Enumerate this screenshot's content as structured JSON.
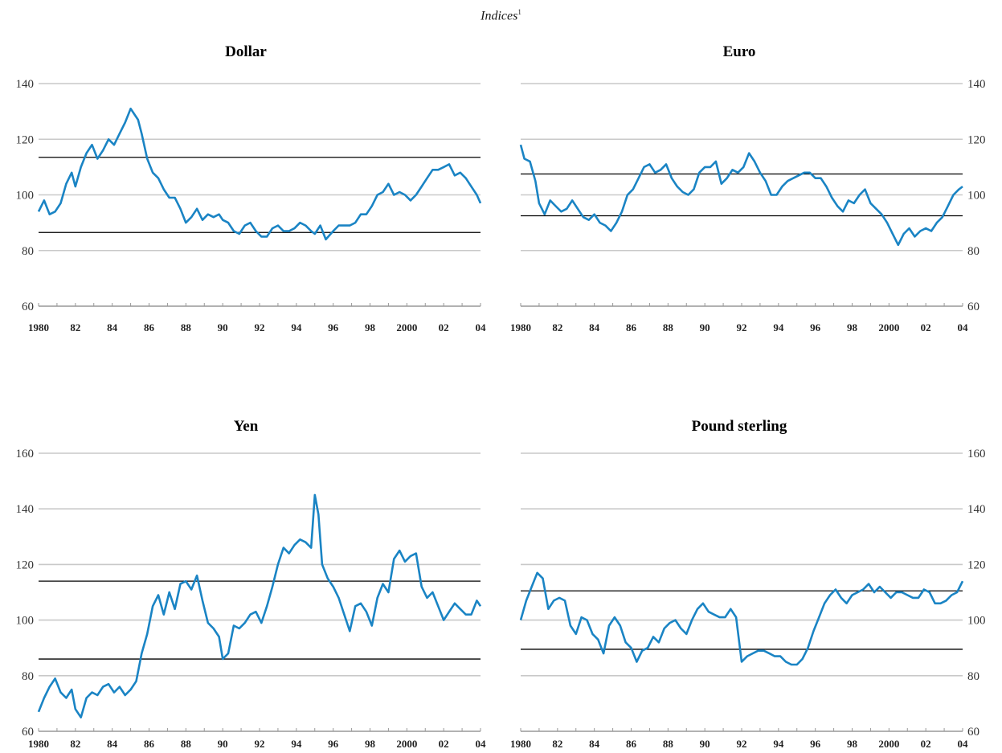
{
  "figure": {
    "title": "Indices",
    "title_superscript": "1"
  },
  "colors": {
    "series": "#1a84c4",
    "grid": "#c9c9c9",
    "band": "#000000"
  },
  "chart_data": [
    {
      "type": "line",
      "title": "Dollar",
      "y_axis_side": "left",
      "ylim": [
        60,
        140
      ],
      "yticks": [
        60,
        80,
        100,
        120,
        140
      ],
      "xlim": [
        1980,
        2004
      ],
      "xtick_values": [
        1980,
        1982,
        1984,
        1986,
        1988,
        1990,
        1992,
        1994,
        1996,
        1998,
        2000,
        2002,
        2004
      ],
      "xtick_labels": [
        "1980",
        "82",
        "84",
        "86",
        "88",
        "90",
        "92",
        "94",
        "96",
        "98",
        "2000",
        "02",
        "04"
      ],
      "grid": true,
      "bands": [
        113.5,
        86.5
      ],
      "series": [
        {
          "x": [
            1980.0,
            1980.3,
            1980.6,
            1980.9,
            1981.2,
            1981.5,
            1981.8,
            1982.0,
            1982.3,
            1982.6,
            1982.9,
            1983.2,
            1983.5,
            1983.8,
            1984.1,
            1984.4,
            1984.7,
            1985.0,
            1985.2,
            1985.4,
            1985.6,
            1985.9,
            1986.2,
            1986.5,
            1986.8,
            1987.1,
            1987.4,
            1987.7,
            1988.0,
            1988.3,
            1988.6,
            1988.9,
            1989.2,
            1989.5,
            1989.8,
            1990.0,
            1990.3,
            1990.6,
            1990.9,
            1991.2,
            1991.5,
            1991.8,
            1992.1,
            1992.4,
            1992.7,
            1993.0,
            1993.3,
            1993.6,
            1993.9,
            1994.2,
            1994.5,
            1994.8,
            1995.0,
            1995.3,
            1995.6,
            1996.0,
            1996.3,
            1996.6,
            1996.9,
            1997.2,
            1997.5,
            1997.8,
            1998.1,
            1998.4,
            1998.7,
            1999.0,
            1999.3,
            1999.6,
            1999.9,
            2000.2,
            2000.5,
            2000.8,
            2001.1,
            2001.4,
            2001.7,
            2002.0,
            2002.3,
            2002.6,
            2002.9,
            2003.2,
            2003.5,
            2003.8,
            2004.0
          ],
          "y": [
            94,
            98,
            93,
            94,
            97,
            104,
            108,
            103,
            110,
            115,
            118,
            113,
            116,
            120,
            118,
            122,
            126,
            131,
            129,
            127,
            122,
            113,
            108,
            106,
            102,
            99,
            99,
            95,
            90,
            92,
            95,
            91,
            93,
            92,
            93,
            91,
            90,
            87,
            86,
            89,
            90,
            87,
            85,
            85,
            88,
            89,
            87,
            87,
            88,
            90,
            89,
            87,
            86,
            89,
            84,
            87,
            89,
            89,
            89,
            90,
            93,
            93,
            96,
            100,
            101,
            104,
            100,
            101,
            100,
            98,
            100,
            103,
            106,
            109,
            109,
            110,
            111,
            107,
            108,
            106,
            103,
            100,
            97
          ]
        }
      ]
    },
    {
      "type": "line",
      "title": "Euro",
      "y_axis_side": "right",
      "ylim": [
        60,
        140
      ],
      "yticks": [
        60,
        80,
        100,
        120,
        140
      ],
      "xlim": [
        1980,
        2004
      ],
      "xtick_values": [
        1980,
        1982,
        1984,
        1986,
        1988,
        1990,
        1992,
        1994,
        1996,
        1998,
        2000,
        2002,
        2004
      ],
      "xtick_labels": [
        "1980",
        "82",
        "84",
        "86",
        "88",
        "90",
        "92",
        "94",
        "96",
        "98",
        "2000",
        "02",
        "04"
      ],
      "grid": true,
      "bands": [
        107.5,
        92.5
      ],
      "series": [
        {
          "x": [
            1980.0,
            1980.2,
            1980.5,
            1980.8,
            1981.0,
            1981.3,
            1981.6,
            1981.9,
            1982.2,
            1982.5,
            1982.8,
            1983.1,
            1983.4,
            1983.7,
            1984.0,
            1984.3,
            1984.6,
            1984.9,
            1985.2,
            1985.5,
            1985.8,
            1986.1,
            1986.4,
            1986.7,
            1987.0,
            1987.3,
            1987.6,
            1987.9,
            1988.2,
            1988.5,
            1988.8,
            1989.1,
            1989.4,
            1989.7,
            1990.0,
            1990.3,
            1990.6,
            1990.9,
            1991.2,
            1991.5,
            1991.8,
            1992.1,
            1992.4,
            1992.7,
            1993.0,
            1993.3,
            1993.6,
            1993.9,
            1994.2,
            1994.5,
            1994.8,
            1995.1,
            1995.4,
            1995.7,
            1996.0,
            1996.3,
            1996.6,
            1996.9,
            1997.2,
            1997.5,
            1997.8,
            1998.1,
            1998.4,
            1998.7,
            1999.0,
            1999.3,
            1999.6,
            1999.9,
            2000.2,
            2000.5,
            2000.8,
            2001.1,
            2001.4,
            2001.7,
            2002.0,
            2002.3,
            2002.6,
            2002.9,
            2003.2,
            2003.5,
            2003.8,
            2004.0
          ],
          "y": [
            118,
            113,
            112,
            105,
            97,
            93,
            98,
            96,
            94,
            95,
            98,
            95,
            92,
            91,
            93,
            90,
            89,
            87,
            90,
            94,
            100,
            102,
            106,
            110,
            111,
            108,
            109,
            111,
            106,
            103,
            101,
            100,
            102,
            108,
            110,
            110,
            112,
            104,
            106,
            109,
            108,
            110,
            115,
            112,
            108,
            105,
            100,
            100,
            103,
            105,
            106,
            107,
            108,
            108,
            106,
            106,
            103,
            99,
            96,
            94,
            98,
            97,
            100,
            102,
            97,
            95,
            93,
            90,
            86,
            82,
            86,
            88,
            85,
            87,
            88,
            87,
            90,
            92,
            96,
            100,
            102,
            103
          ]
        }
      ]
    },
    {
      "type": "line",
      "title": "Yen",
      "y_axis_side": "left",
      "ylim": [
        60,
        160
      ],
      "yticks": [
        60,
        80,
        100,
        120,
        140,
        160
      ],
      "xlim": [
        1980,
        2004
      ],
      "xtick_values": [
        1980,
        1982,
        1984,
        1986,
        1988,
        1990,
        1992,
        1994,
        1996,
        1998,
        2000,
        2002,
        2004
      ],
      "xtick_labels": [
        "1980",
        "82",
        "84",
        "86",
        "88",
        "90",
        "92",
        "94",
        "96",
        "98",
        "2000",
        "02",
        "04"
      ],
      "grid": true,
      "bands": [
        114,
        86
      ],
      "series": [
        {
          "x": [
            1980.0,
            1980.3,
            1980.6,
            1980.9,
            1981.2,
            1981.5,
            1981.8,
            1982.0,
            1982.3,
            1982.6,
            1982.9,
            1983.2,
            1983.5,
            1983.8,
            1984.1,
            1984.4,
            1984.7,
            1985.0,
            1985.3,
            1985.6,
            1985.9,
            1986.2,
            1986.5,
            1986.8,
            1987.1,
            1987.4,
            1987.7,
            1988.0,
            1988.3,
            1988.6,
            1988.9,
            1989.2,
            1989.5,
            1989.8,
            1990.0,
            1990.3,
            1990.6,
            1990.9,
            1991.2,
            1991.5,
            1991.8,
            1992.1,
            1992.4,
            1992.7,
            1993.0,
            1993.3,
            1993.6,
            1993.9,
            1994.2,
            1994.5,
            1994.8,
            1995.0,
            1995.2,
            1995.4,
            1995.7,
            1996.0,
            1996.3,
            1996.6,
            1996.9,
            1997.2,
            1997.5,
            1997.8,
            1998.1,
            1998.4,
            1998.7,
            1999.0,
            1999.3,
            1999.6,
            1999.9,
            2000.2,
            2000.5,
            2000.8,
            2001.1,
            2001.4,
            2001.7,
            2002.0,
            2002.3,
            2002.6,
            2002.9,
            2003.2,
            2003.5,
            2003.8,
            2004.0
          ],
          "y": [
            67,
            72,
            76,
            79,
            74,
            72,
            75,
            68,
            65,
            72,
            74,
            73,
            76,
            77,
            74,
            76,
            73,
            75,
            78,
            88,
            95,
            105,
            109,
            102,
            110,
            104,
            113,
            114,
            111,
            116,
            107,
            99,
            97,
            94,
            86,
            88,
            98,
            97,
            99,
            102,
            103,
            99,
            105,
            112,
            120,
            126,
            124,
            127,
            129,
            128,
            126,
            145,
            138,
            120,
            115,
            112,
            108,
            102,
            96,
            105,
            106,
            103,
            98,
            108,
            113,
            110,
            122,
            125,
            121,
            123,
            124,
            112,
            108,
            110,
            105,
            100,
            103,
            106,
            104,
            102,
            102,
            107,
            105
          ]
        }
      ]
    },
    {
      "type": "line",
      "title": "Pound sterling",
      "y_axis_side": "right",
      "ylim": [
        60,
        160
      ],
      "yticks": [
        60,
        80,
        100,
        120,
        140,
        160
      ],
      "xlim": [
        1980,
        2004
      ],
      "xtick_values": [
        1980,
        1982,
        1984,
        1986,
        1988,
        1990,
        1992,
        1994,
        1996,
        1998,
        2000,
        2002,
        2004
      ],
      "xtick_labels": [
        "1980",
        "82",
        "84",
        "86",
        "88",
        "90",
        "92",
        "94",
        "96",
        "98",
        "2000",
        "02",
        "04"
      ],
      "grid": true,
      "bands": [
        110.5,
        89.5
      ],
      "series": [
        {
          "x": [
            1980.0,
            1980.3,
            1980.6,
            1980.9,
            1981.2,
            1981.5,
            1981.8,
            1982.1,
            1982.4,
            1982.7,
            1983.0,
            1983.3,
            1983.6,
            1983.9,
            1984.2,
            1984.5,
            1984.8,
            1985.1,
            1985.4,
            1985.7,
            1986.0,
            1986.3,
            1986.6,
            1986.9,
            1987.2,
            1987.5,
            1987.8,
            1988.1,
            1988.4,
            1988.7,
            1989.0,
            1989.3,
            1989.6,
            1989.9,
            1990.2,
            1990.5,
            1990.8,
            1991.1,
            1991.4,
            1991.7,
            1992.0,
            1992.3,
            1992.6,
            1992.9,
            1993.2,
            1993.5,
            1993.8,
            1994.1,
            1994.4,
            1994.7,
            1995.0,
            1995.3,
            1995.6,
            1995.9,
            1996.2,
            1996.5,
            1996.8,
            1997.1,
            1997.4,
            1997.7,
            1998.0,
            1998.3,
            1998.6,
            1998.9,
            1999.2,
            1999.5,
            1999.8,
            2000.1,
            2000.4,
            2000.7,
            2001.0,
            2001.3,
            2001.6,
            2001.9,
            2002.2,
            2002.5,
            2002.8,
            2003.1,
            2003.4,
            2003.7,
            2004.0
          ],
          "y": [
            100,
            107,
            112,
            117,
            115,
            104,
            107,
            108,
            107,
            98,
            95,
            101,
            100,
            95,
            93,
            88,
            98,
            101,
            98,
            92,
            90,
            85,
            89,
            90,
            94,
            92,
            97,
            99,
            100,
            97,
            95,
            100,
            104,
            106,
            103,
            102,
            101,
            101,
            104,
            101,
            85,
            87,
            88,
            89,
            89,
            88,
            87,
            87,
            85,
            84,
            84,
            86,
            90,
            96,
            101,
            106,
            109,
            111,
            108,
            106,
            109,
            110,
            111,
            113,
            110,
            112,
            110,
            108,
            110,
            110,
            109,
            108,
            108,
            111,
            110,
            106,
            106,
            107,
            109,
            110,
            114
          ]
        }
      ]
    }
  ]
}
